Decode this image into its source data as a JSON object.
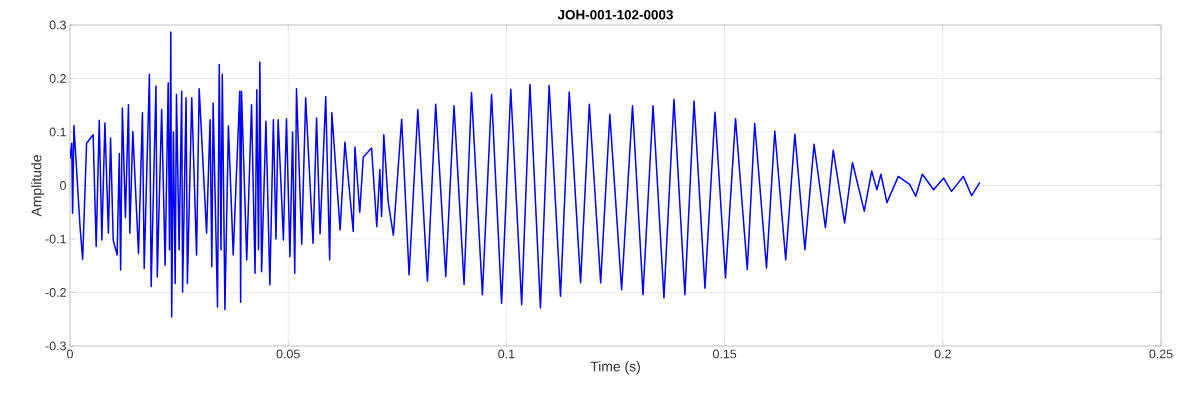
{
  "chart_data": {
    "type": "line",
    "title": "JOH-001-102-0003",
    "xlabel": "Time (s)",
    "ylabel": "Amplitude",
    "xlim": [
      0,
      0.25
    ],
    "ylim": [
      -0.3,
      0.3
    ],
    "xticks": [
      0,
      0.05,
      0.1,
      0.15,
      0.2,
      0.25
    ],
    "yticks": [
      -0.3,
      -0.2,
      -0.1,
      0,
      0.1,
      0.2,
      0.3
    ],
    "grid": true,
    "series": [
      {
        "color": "#0000ff",
        "x": [
          0,
          0.0004,
          0.0006,
          0.0009,
          0.0023,
          0.0029,
          0.0038,
          0.0053,
          0.006,
          0.0067,
          0.0073,
          0.008,
          0.0088,
          0.0093,
          0.0099,
          0.0108,
          0.0113,
          0.0116,
          0.012,
          0.0127,
          0.0134,
          0.0137,
          0.0144,
          0.0157,
          0.0166,
          0.017,
          0.0182,
          0.0186,
          0.0197,
          0.02,
          0.021,
          0.0218,
          0.0225,
          0.0228,
          0.0231,
          0.0233,
          0.0237,
          0.0241,
          0.0244,
          0.025,
          0.0256,
          0.0258,
          0.0266,
          0.0269,
          0.0279,
          0.029,
          0.0296,
          0.0313,
          0.0321,
          0.0325,
          0.0328,
          0.0338,
          0.0342,
          0.0346,
          0.0349,
          0.0355,
          0.0363,
          0.0374,
          0.0389,
          0.0391,
          0.0393,
          0.0405,
          0.0416,
          0.0424,
          0.0428,
          0.0432,
          0.0435,
          0.0439,
          0.0449,
          0.0458,
          0.0466,
          0.0472,
          0.0477,
          0.0489,
          0.0496,
          0.0504,
          0.051,
          0.0515,
          0.0519,
          0.0531,
          0.054,
          0.0557,
          0.0565,
          0.0573,
          0.0586,
          0.0595,
          0.06,
          0.0619,
          0.063,
          0.0649,
          0.0653,
          0.0664,
          0.0672,
          0.0691,
          0.0703,
          0.071,
          0.0714,
          0.0719,
          0.0729,
          0.0741,
          0.076,
          0.0777,
          0.0797,
          0.0819,
          0.0838,
          0.0861,
          0.088,
          0.0903,
          0.092,
          0.0945,
          0.0966,
          0.0989,
          0.101,
          0.1035,
          0.1054,
          0.1078,
          0.1098,
          0.1124,
          0.1144,
          0.117,
          0.119,
          0.1216,
          0.1237,
          0.1264,
          0.1289,
          0.1313,
          0.1336,
          0.1361,
          0.1384,
          0.1409,
          0.143,
          0.1455,
          0.1478,
          0.1502,
          0.1525,
          0.1552,
          0.1569,
          0.1596,
          0.1615,
          0.164,
          0.1661,
          0.1684,
          0.1705,
          0.1731,
          0.1749,
          0.1775,
          0.1793,
          0.182,
          0.1837,
          0.1849,
          0.1858,
          0.1872,
          0.1898,
          0.1924,
          0.1938,
          0.1953,
          0.1979,
          0.2002,
          0.202,
          0.2047,
          0.2066,
          0.2085
        ],
        "values": [
          0.05,
          0.079,
          -0.052,
          0.112,
          -0.077,
          -0.138,
          0.079,
          0.095,
          -0.114,
          0.122,
          -0.102,
          0.117,
          -0.089,
          0.089,
          -0.102,
          -0.13,
          0.06,
          -0.158,
          0.145,
          -0.06,
          0.151,
          -0.089,
          0.101,
          -0.127,
          0.136,
          -0.155,
          0.208,
          -0.189,
          0.186,
          -0.171,
          0.142,
          -0.149,
          0.192,
          -0.12,
          0.287,
          -0.246,
          0.1,
          -0.183,
          0.17,
          -0.12,
          0.176,
          -0.199,
          0.164,
          -0.183,
          0.164,
          -0.13,
          0.181,
          -0.089,
          0.123,
          -0.152,
          0.154,
          -0.227,
          0.226,
          -0.12,
          0.208,
          -0.232,
          0.111,
          -0.13,
          0.176,
          -0.218,
          0.176,
          -0.139,
          0.151,
          -0.164,
          0.179,
          -0.12,
          0.231,
          -0.161,
          0.12,
          -0.186,
          0.123,
          -0.1,
          0.123,
          -0.102,
          0.125,
          -0.133,
          0.1,
          -0.164,
          0.181,
          -0.11,
          0.164,
          -0.108,
          0.126,
          -0.09,
          0.166,
          -0.139,
          0.136,
          -0.083,
          0.081,
          -0.086,
          0.072,
          -0.05,
          0.053,
          0.07,
          -0.077,
          0.03,
          -0.058,
          0.095,
          -0.03,
          -0.093,
          0.124,
          -0.167,
          0.142,
          -0.179,
          0.152,
          -0.17,
          0.149,
          -0.185,
          0.174,
          -0.204,
          0.17,
          -0.22,
          0.18,
          -0.223,
          0.189,
          -0.229,
          0.187,
          -0.207,
          0.175,
          -0.182,
          0.152,
          -0.182,
          0.133,
          -0.195,
          0.149,
          -0.204,
          0.149,
          -0.21,
          0.161,
          -0.204,
          0.158,
          -0.192,
          0.137,
          -0.173,
          0.125,
          -0.157,
          0.116,
          -0.154,
          0.102,
          -0.139,
          0.096,
          -0.12,
          0.077,
          -0.079,
          0.066,
          -0.07,
          0.043,
          -0.048,
          0.027,
          -0.008,
          0.021,
          -0.032,
          0.017,
          0.002,
          -0.02,
          0.021,
          -0.008,
          0.014,
          -0.011,
          0.017,
          -0.019,
          0.006
        ]
      }
    ]
  }
}
